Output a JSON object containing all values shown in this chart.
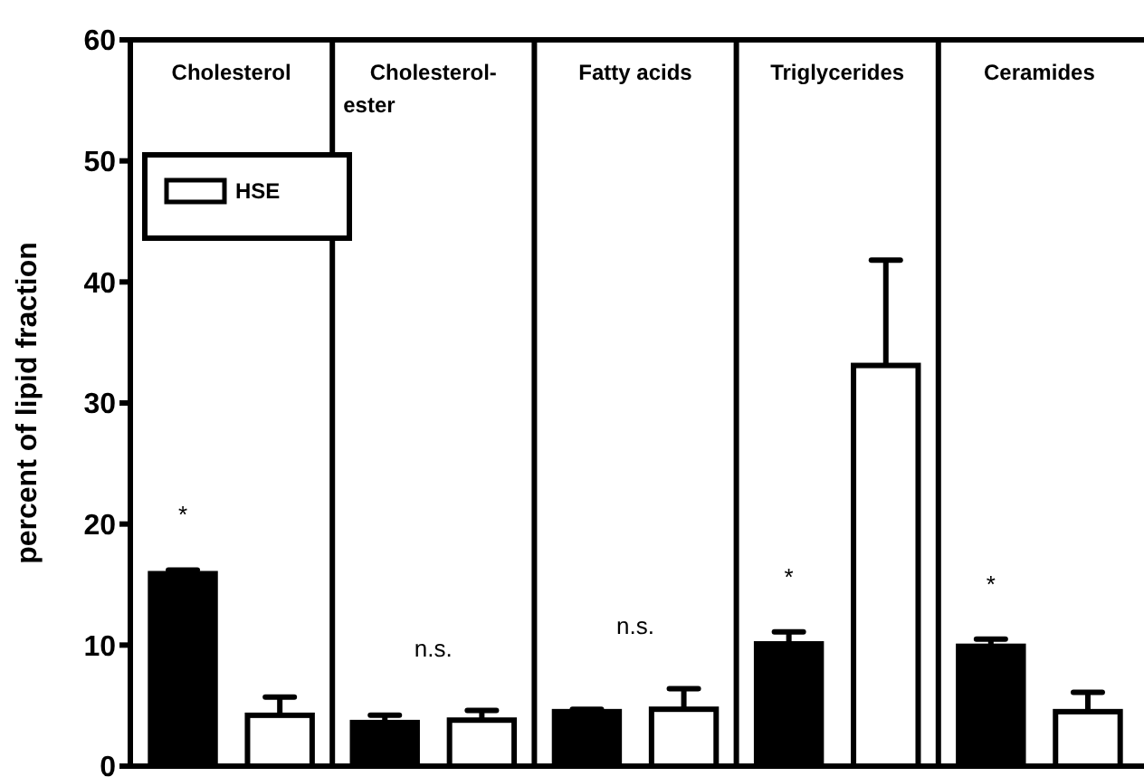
{
  "chart_data": {
    "type": "bar",
    "ylabel": "percent of lipid fraction",
    "categories": [
      "Cholesterol",
      "Cholesterol-\nester",
      "Fatty acids",
      "Triglycerides",
      "Ceramides"
    ],
    "series": [
      {
        "color": "#000000",
        "values": [
          15.9,
          3.6,
          4.5,
          10.1,
          9.9
        ],
        "errors": [
          0.3,
          0.6,
          0.2,
          1.0,
          0.6
        ]
      },
      {
        "name": "HSE",
        "color": "#ffffff",
        "values": [
          4.2,
          3.8,
          4.7,
          33.1,
          4.5
        ],
        "errors": [
          1.5,
          0.8,
          1.7,
          8.7,
          1.6
        ]
      }
    ],
    "ylim": [
      0,
      60
    ],
    "yticks": [
      0,
      10,
      20,
      30,
      40,
      50,
      60
    ],
    "grid": false,
    "legend": "top left",
    "annotations": [
      "*",
      "n.s.",
      "n.s.",
      "*",
      "*"
    ]
  }
}
